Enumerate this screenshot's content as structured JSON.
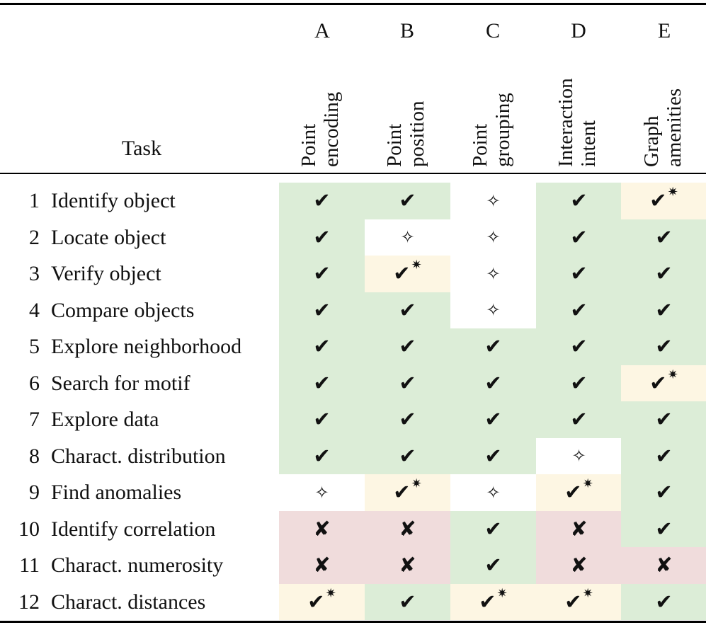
{
  "header": {
    "task_label": "Task",
    "columns": [
      {
        "letter": "A",
        "line1": "Point",
        "line2": "encoding"
      },
      {
        "letter": "B",
        "line1": "Point",
        "line2": "position"
      },
      {
        "letter": "C",
        "line1": "Point",
        "line2": "grouping"
      },
      {
        "letter": "D",
        "line1": "Interaction",
        "line2": "intent"
      },
      {
        "letter": "E",
        "line1": "Graph",
        "line2": "amenities"
      }
    ]
  },
  "symbols": {
    "yes": "✔",
    "star": "✷",
    "no": "✘",
    "open": "✧"
  },
  "colors": {
    "yes_bg": "#dcedd7",
    "star_bg": "#fdf6e3",
    "no_bg": "#f0dcdc",
    "open_bg": "#ffffff"
  },
  "rows": [
    {
      "num": "1",
      "task": "Identify object",
      "cells": [
        "yes",
        "yes",
        "open",
        "yes",
        "star"
      ]
    },
    {
      "num": "2",
      "task": "Locate object",
      "cells": [
        "yes",
        "open",
        "open",
        "yes",
        "yes"
      ]
    },
    {
      "num": "3",
      "task": "Verify object",
      "cells": [
        "yes",
        "star",
        "open",
        "yes",
        "yes"
      ]
    },
    {
      "num": "4",
      "task": "Compare objects",
      "cells": [
        "yes",
        "yes",
        "open",
        "yes",
        "yes"
      ]
    },
    {
      "num": "5",
      "task": "Explore neighborhood",
      "cells": [
        "yes",
        "yes",
        "yes",
        "yes",
        "yes"
      ]
    },
    {
      "num": "6",
      "task": "Search for motif",
      "cells": [
        "yes",
        "yes",
        "yes",
        "yes",
        "star"
      ]
    },
    {
      "num": "7",
      "task": "Explore data",
      "cells": [
        "yes",
        "yes",
        "yes",
        "yes",
        "yes"
      ]
    },
    {
      "num": "8",
      "task": "Charact. distribution",
      "cells": [
        "yes",
        "yes",
        "yes",
        "open",
        "yes"
      ]
    },
    {
      "num": "9",
      "task": "Find anomalies",
      "cells": [
        "open",
        "star",
        "open",
        "star",
        "yes"
      ]
    },
    {
      "num": "10",
      "task": "Identify correlation",
      "cells": [
        "no",
        "no",
        "yes",
        "no",
        "yes"
      ]
    },
    {
      "num": "11",
      "task": "Charact. numerosity",
      "cells": [
        "no",
        "no",
        "yes",
        "no",
        "no"
      ]
    },
    {
      "num": "12",
      "task": "Charact. distances",
      "cells": [
        "star",
        "yes",
        "star",
        "star",
        "yes"
      ]
    }
  ]
}
